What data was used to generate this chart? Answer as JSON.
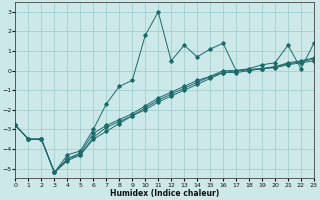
{
  "xlabel": "Humidex (Indice chaleur)",
  "bg_color": "#cce8e8",
  "grid_color": "#99cccc",
  "line_color": "#1a6b6b",
  "xlim": [
    0,
    23
  ],
  "ylim": [
    -5.5,
    3.5
  ],
  "yticks": [
    -5,
    -4,
    -3,
    -2,
    -1,
    0,
    1,
    2,
    3
  ],
  "xticks": [
    0,
    1,
    2,
    3,
    4,
    5,
    6,
    7,
    8,
    9,
    10,
    11,
    12,
    13,
    14,
    15,
    16,
    17,
    18,
    19,
    20,
    21,
    22,
    23
  ],
  "lines": [
    {
      "x": [
        0,
        1,
        2,
        3,
        4,
        5,
        6,
        7,
        8,
        9,
        10,
        11,
        12,
        13,
        14,
        15,
        16,
        17,
        18,
        19,
        20,
        21,
        22,
        23
      ],
      "y": [
        -2.8,
        -3.5,
        -3.5,
        -5.2,
        -4.3,
        -4.1,
        -3.0,
        -1.7,
        -0.8,
        -0.5,
        1.8,
        3.0,
        0.5,
        1.3,
        0.7,
        1.1,
        1.4,
        0.0,
        0.1,
        0.3,
        0.4,
        1.3,
        0.1,
        1.4
      ]
    },
    {
      "x": [
        0,
        1,
        2,
        3,
        4,
        5,
        6,
        7,
        8,
        9,
        10,
        11,
        12,
        13,
        14,
        15,
        16,
        17,
        18,
        19,
        20,
        21,
        22,
        23
      ],
      "y": [
        -2.8,
        -3.5,
        -3.5,
        -5.2,
        -4.5,
        -4.2,
        -3.2,
        -2.8,
        -2.5,
        -2.2,
        -1.8,
        -1.4,
        -1.1,
        -0.8,
        -0.5,
        -0.3,
        -0.1,
        0.0,
        0.05,
        0.1,
        0.15,
        0.3,
        0.4,
        0.5
      ]
    },
    {
      "x": [
        0,
        1,
        2,
        3,
        4,
        5,
        6,
        7,
        8,
        9,
        10,
        11,
        12,
        13,
        14,
        15,
        16,
        17,
        18,
        19,
        20,
        21,
        22,
        23
      ],
      "y": [
        -2.8,
        -3.5,
        -3.5,
        -5.2,
        -4.5,
        -4.3,
        -3.4,
        -2.9,
        -2.6,
        -2.3,
        -1.9,
        -1.5,
        -1.2,
        -0.9,
        -0.6,
        -0.3,
        0.0,
        0.0,
        0.05,
        0.1,
        0.2,
        0.4,
        0.5,
        0.65
      ]
    },
    {
      "x": [
        0,
        1,
        2,
        3,
        4,
        5,
        6,
        7,
        8,
        9,
        10,
        11,
        12,
        13,
        14,
        15,
        16,
        17,
        18,
        19,
        20,
        21,
        22,
        23
      ],
      "y": [
        -2.8,
        -3.5,
        -3.5,
        -5.2,
        -4.6,
        -4.3,
        -3.5,
        -3.1,
        -2.7,
        -2.3,
        -2.0,
        -1.6,
        -1.3,
        -1.0,
        -0.7,
        -0.4,
        -0.1,
        -0.1,
        0.0,
        0.1,
        0.2,
        0.35,
        0.45,
        0.6
      ]
    }
  ]
}
